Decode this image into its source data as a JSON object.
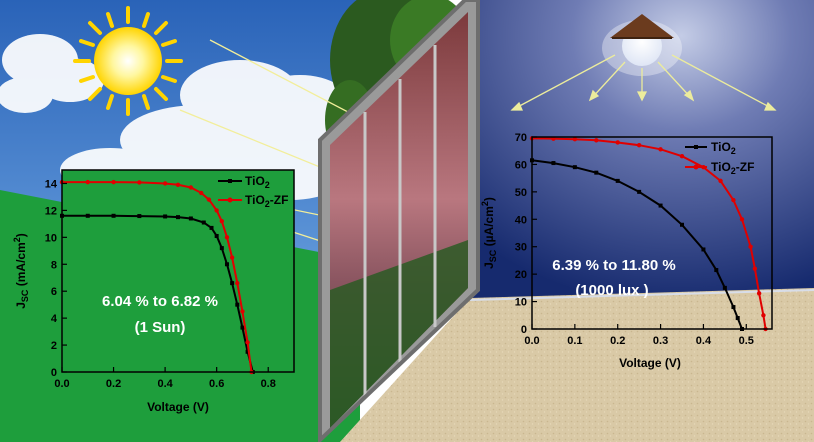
{
  "chart_data": [
    {
      "type": "line",
      "title": "",
      "xlabel": "Voltage (V)",
      "ylabel": "J_SC (mA/cm^2)",
      "xlim": [
        0,
        0.9
      ],
      "ylim": [
        0,
        15
      ],
      "xticks": [
        "0.0",
        "0.2",
        "0.4",
        "0.6",
        "0.8"
      ],
      "yticks": [
        "0",
        "2",
        "4",
        "6",
        "8",
        "10",
        "12",
        "14"
      ],
      "legend_position": "top-right",
      "annotation": [
        "6.04 % to 6.82 %",
        "(1 Sun)"
      ],
      "series": [
        {
          "name": "TiO2",
          "color": "#000000",
          "x": [
            0,
            0.1,
            0.2,
            0.3,
            0.4,
            0.45,
            0.5,
            0.55,
            0.58,
            0.6,
            0.62,
            0.64,
            0.66,
            0.68,
            0.7,
            0.72,
            0.74
          ],
          "y": [
            11.6,
            11.6,
            11.6,
            11.58,
            11.55,
            11.5,
            11.4,
            11.1,
            10.7,
            10.1,
            9.2,
            8.0,
            6.6,
            5.0,
            3.3,
            1.5,
            0
          ]
        },
        {
          "name": "TiO2-ZF",
          "color": "#e00000",
          "x": [
            0,
            0.1,
            0.2,
            0.3,
            0.4,
            0.45,
            0.5,
            0.54,
            0.57,
            0.6,
            0.62,
            0.64,
            0.66,
            0.68,
            0.7,
            0.72,
            0.735
          ],
          "y": [
            14.1,
            14.1,
            14.1,
            14.08,
            14.0,
            13.9,
            13.7,
            13.3,
            12.8,
            12.0,
            11.2,
            10.0,
            8.5,
            6.6,
            4.5,
            2.2,
            0
          ]
        }
      ]
    },
    {
      "type": "line",
      "title": "",
      "xlabel": "Voltage (V)",
      "ylabel": "J_SC (µA/cm^2)",
      "xlim": [
        0,
        0.56
      ],
      "ylim": [
        0,
        70
      ],
      "xticks": [
        "0.0",
        "0.1",
        "0.2",
        "0.3",
        "0.4",
        "0.5"
      ],
      "yticks": [
        "0",
        "10",
        "20",
        "30",
        "40",
        "50",
        "60",
        "70"
      ],
      "legend_position": "top-right",
      "annotation": [
        "6.39 % to 11.80 %",
        "(1000 lux )"
      ],
      "series": [
        {
          "name": "TiO2",
          "color": "#000000",
          "x": [
            0,
            0.05,
            0.1,
            0.15,
            0.2,
            0.25,
            0.3,
            0.35,
            0.4,
            0.43,
            0.45,
            0.47,
            0.48,
            0.49
          ],
          "y": [
            61.5,
            60.5,
            59.0,
            57.0,
            54.0,
            50.0,
            45.0,
            38.0,
            29.0,
            21.5,
            15.0,
            8.0,
            4.0,
            0
          ]
        },
        {
          "name": "TiO2-ZF",
          "color": "#e00000",
          "x": [
            0,
            0.05,
            0.1,
            0.15,
            0.2,
            0.25,
            0.3,
            0.35,
            0.4,
            0.44,
            0.47,
            0.49,
            0.51,
            0.52,
            0.53,
            0.54,
            0.545
          ],
          "y": [
            69.5,
            69.4,
            69.2,
            68.8,
            68.0,
            67.0,
            65.5,
            63.0,
            59.0,
            54.0,
            47.0,
            40.0,
            30.0,
            22.0,
            13.0,
            5.0,
            0
          ]
        }
      ]
    }
  ]
}
